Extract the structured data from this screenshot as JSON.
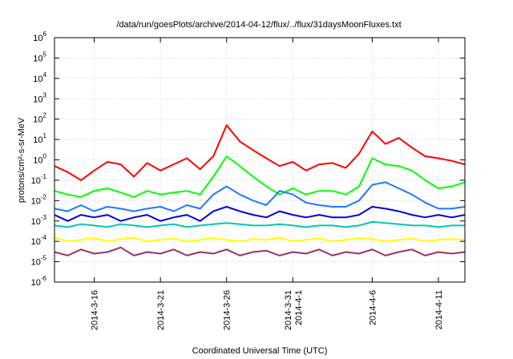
{
  "chart_data": {
    "type": "line",
    "title": "/data/run/goesPlots/archive/2014-04-12/flux/../flux/31daysMoonFluxes.txt",
    "xlabel": "Coordinated Universal Time (UTC)",
    "ylabel": "protons/cm²-s-sr-MeV",
    "y_scale": "log",
    "ylim_exponents": [
      -6,
      6
    ],
    "y_ticks": [
      {
        "base": "10",
        "exp": "-6"
      },
      {
        "base": "10",
        "exp": "-5"
      },
      {
        "base": "10",
        "exp": "-4"
      },
      {
        "base": "10",
        "exp": "-3"
      },
      {
        "base": "10",
        "exp": "-2"
      },
      {
        "base": "10",
        "exp": "-1"
      },
      {
        "base": "10",
        "exp": "0"
      },
      {
        "base": "10",
        "exp": "1"
      },
      {
        "base": "10",
        "exp": "2"
      },
      {
        "base": "10",
        "exp": "3"
      },
      {
        "base": "10",
        "exp": "4"
      },
      {
        "base": "10",
        "exp": "5"
      },
      {
        "base": "10",
        "exp": "6"
      }
    ],
    "x_range": [
      "2014-03-13",
      "2014-04-13"
    ],
    "x_ticks": [
      {
        "date": "2014-03-16",
        "labels": [
          "2014-3-16"
        ]
      },
      {
        "date": "2014-03-21",
        "labels": [
          "2014-3-21"
        ]
      },
      {
        "date": "2014-03-26",
        "labels": [
          "2014-3-26"
        ]
      },
      {
        "date": "2014-03-31",
        "labels": [
          "2014-3-31",
          "2014-4-1"
        ]
      },
      {
        "date": "2014-04-06",
        "labels": [
          "2014-4-6"
        ]
      },
      {
        "date": "2014-04-11",
        "labels": [
          "2014-4-11"
        ]
      }
    ],
    "grid": true,
    "series": [
      {
        "color": "#ff0000",
        "points": [
          [
            "2014-03-13",
            0.5
          ],
          [
            "2014-03-14",
            0.25
          ],
          [
            "2014-03-15",
            0.1
          ],
          [
            "2014-03-16",
            0.3
          ],
          [
            "2014-03-17",
            0.8
          ],
          [
            "2014-03-18",
            0.6
          ],
          [
            "2014-03-19",
            0.15
          ],
          [
            "2014-03-20",
            0.7
          ],
          [
            "2014-03-21",
            0.3
          ],
          [
            "2014-03-22",
            0.6
          ],
          [
            "2014-03-23",
            1.2
          ],
          [
            "2014-03-24",
            0.35
          ],
          [
            "2014-03-25",
            1.5
          ],
          [
            "2014-03-26",
            50
          ],
          [
            "2014-03-27",
            8
          ],
          [
            "2014-03-28",
            3
          ],
          [
            "2014-03-29",
            1.2
          ],
          [
            "2014-03-30",
            0.5
          ],
          [
            "2014-03-31",
            0.8
          ],
          [
            "2014-04-01",
            0.3
          ],
          [
            "2014-04-02",
            0.6
          ],
          [
            "2014-04-03",
            0.7
          ],
          [
            "2014-04-04",
            0.4
          ],
          [
            "2014-04-05",
            2
          ],
          [
            "2014-04-06",
            25
          ],
          [
            "2014-04-07",
            6
          ],
          [
            "2014-04-08",
            12
          ],
          [
            "2014-04-09",
            4
          ],
          [
            "2014-04-10",
            1.5
          ],
          [
            "2014-04-11",
            1.2
          ],
          [
            "2014-04-12",
            0.9
          ],
          [
            "2014-04-13",
            0.6
          ]
        ]
      },
      {
        "color": "#00ff00",
        "points": [
          [
            "2014-03-13",
            0.03
          ],
          [
            "2014-03-14",
            0.02
          ],
          [
            "2014-03-15",
            0.015
          ],
          [
            "2014-03-16",
            0.03
          ],
          [
            "2014-03-17",
            0.04
          ],
          [
            "2014-03-18",
            0.025
          ],
          [
            "2014-03-19",
            0.015
          ],
          [
            "2014-03-20",
            0.03
          ],
          [
            "2014-03-21",
            0.02
          ],
          [
            "2014-03-22",
            0.025
          ],
          [
            "2014-03-23",
            0.03
          ],
          [
            "2014-03-24",
            0.02
          ],
          [
            "2014-03-25",
            0.15
          ],
          [
            "2014-03-26",
            1.5
          ],
          [
            "2014-03-27",
            0.5
          ],
          [
            "2014-03-28",
            0.15
          ],
          [
            "2014-03-29",
            0.05
          ],
          [
            "2014-03-30",
            0.02
          ],
          [
            "2014-03-31",
            0.04
          ],
          [
            "2014-04-01",
            0.02
          ],
          [
            "2014-04-02",
            0.03
          ],
          [
            "2014-04-03",
            0.03
          ],
          [
            "2014-04-04",
            0.02
          ],
          [
            "2014-04-05",
            0.05
          ],
          [
            "2014-04-06",
            1.2
          ],
          [
            "2014-04-07",
            0.6
          ],
          [
            "2014-04-08",
            0.5
          ],
          [
            "2014-04-09",
            0.3
          ],
          [
            "2014-04-10",
            0.1
          ],
          [
            "2014-04-11",
            0.04
          ],
          [
            "2014-04-12",
            0.05
          ],
          [
            "2014-04-13",
            0.08
          ]
        ]
      },
      {
        "color": "#1e78ff",
        "points": [
          [
            "2014-03-13",
            0.004
          ],
          [
            "2014-03-14",
            0.003
          ],
          [
            "2014-03-15",
            0.006
          ],
          [
            "2014-03-16",
            0.003
          ],
          [
            "2014-03-17",
            0.005
          ],
          [
            "2014-03-18",
            0.004
          ],
          [
            "2014-03-19",
            0.003
          ],
          [
            "2014-03-20",
            0.004
          ],
          [
            "2014-03-21",
            0.005
          ],
          [
            "2014-03-22",
            0.003
          ],
          [
            "2014-03-23",
            0.006
          ],
          [
            "2014-03-24",
            0.004
          ],
          [
            "2014-03-25",
            0.02
          ],
          [
            "2014-03-26",
            0.05
          ],
          [
            "2014-03-27",
            0.02
          ],
          [
            "2014-03-28",
            0.01
          ],
          [
            "2014-03-29",
            0.006
          ],
          [
            "2014-03-30",
            0.03
          ],
          [
            "2014-03-31",
            0.02
          ],
          [
            "2014-04-01",
            0.008
          ],
          [
            "2014-04-02",
            0.006
          ],
          [
            "2014-04-03",
            0.005
          ],
          [
            "2014-04-04",
            0.005
          ],
          [
            "2014-04-05",
            0.01
          ],
          [
            "2014-04-06",
            0.06
          ],
          [
            "2014-04-07",
            0.08
          ],
          [
            "2014-04-08",
            0.04
          ],
          [
            "2014-04-09",
            0.02
          ],
          [
            "2014-04-10",
            0.008
          ],
          [
            "2014-04-11",
            0.004
          ],
          [
            "2014-04-12",
            0.004
          ],
          [
            "2014-04-13",
            0.005
          ]
        ]
      },
      {
        "color": "#0000e0",
        "points": [
          [
            "2014-03-13",
            0.002
          ],
          [
            "2014-03-14",
            0.001
          ],
          [
            "2014-03-15",
            0.002
          ],
          [
            "2014-03-16",
            0.0015
          ],
          [
            "2014-03-17",
            0.002
          ],
          [
            "2014-03-18",
            0.001
          ],
          [
            "2014-03-19",
            0.0015
          ],
          [
            "2014-03-20",
            0.002
          ],
          [
            "2014-03-21",
            0.001
          ],
          [
            "2014-03-22",
            0.0015
          ],
          [
            "2014-03-23",
            0.002
          ],
          [
            "2014-03-24",
            0.001
          ],
          [
            "2014-03-25",
            0.003
          ],
          [
            "2014-03-26",
            0.005
          ],
          [
            "2014-03-27",
            0.003
          ],
          [
            "2014-03-28",
            0.002
          ],
          [
            "2014-03-29",
            0.0015
          ],
          [
            "2014-03-30",
            0.003
          ],
          [
            "2014-03-31",
            0.002
          ],
          [
            "2014-04-01",
            0.0015
          ],
          [
            "2014-04-02",
            0.002
          ],
          [
            "2014-04-03",
            0.0015
          ],
          [
            "2014-04-04",
            0.0015
          ],
          [
            "2014-04-05",
            0.002
          ],
          [
            "2014-04-06",
            0.005
          ],
          [
            "2014-04-07",
            0.004
          ],
          [
            "2014-04-08",
            0.003
          ],
          [
            "2014-04-09",
            0.002
          ],
          [
            "2014-04-10",
            0.0015
          ],
          [
            "2014-04-11",
            0.002
          ],
          [
            "2014-04-12",
            0.0015
          ],
          [
            "2014-04-13",
            0.002
          ]
        ]
      },
      {
        "color": "#00c8b4",
        "points": [
          [
            "2014-03-13",
            0.0006
          ],
          [
            "2014-03-14",
            0.0005
          ],
          [
            "2014-03-15",
            0.0007
          ],
          [
            "2014-03-16",
            0.0006
          ],
          [
            "2014-03-17",
            0.0005
          ],
          [
            "2014-03-18",
            0.0007
          ],
          [
            "2014-03-19",
            0.0006
          ],
          [
            "2014-03-20",
            0.0005
          ],
          [
            "2014-03-21",
            0.0006
          ],
          [
            "2014-03-22",
            0.0007
          ],
          [
            "2014-03-23",
            0.0005
          ],
          [
            "2014-03-24",
            0.0006
          ],
          [
            "2014-03-25",
            0.0007
          ],
          [
            "2014-03-26",
            0.0008
          ],
          [
            "2014-03-27",
            0.0007
          ],
          [
            "2014-03-28",
            0.0006
          ],
          [
            "2014-03-29",
            0.0006
          ],
          [
            "2014-03-30",
            0.0007
          ],
          [
            "2014-03-31",
            0.0006
          ],
          [
            "2014-04-01",
            0.0005
          ],
          [
            "2014-04-02",
            0.0006
          ],
          [
            "2014-04-03",
            0.0006
          ],
          [
            "2014-04-04",
            0.0005
          ],
          [
            "2014-04-05",
            0.0006
          ],
          [
            "2014-04-06",
            0.0009
          ],
          [
            "2014-04-07",
            0.0008
          ],
          [
            "2014-04-08",
            0.0007
          ],
          [
            "2014-04-09",
            0.0006
          ],
          [
            "2014-04-10",
            0.0006
          ],
          [
            "2014-04-11",
            0.0005
          ],
          [
            "2014-04-12",
            0.0006
          ],
          [
            "2014-04-13",
            0.0006
          ]
        ]
      },
      {
        "color": "#ffff00",
        "points": [
          [
            "2014-03-13",
            0.00015
          ],
          [
            "2014-03-14",
            0.0001
          ],
          [
            "2014-03-15",
            0.00012
          ],
          [
            "2014-03-16",
            0.00015
          ],
          [
            "2014-03-17",
            0.0001
          ],
          [
            "2014-03-18",
            0.00013
          ],
          [
            "2014-03-19",
            0.00015
          ],
          [
            "2014-03-20",
            0.0001
          ],
          [
            "2014-03-21",
            0.00012
          ],
          [
            "2014-03-22",
            0.00014
          ],
          [
            "2014-03-23",
            0.0001
          ],
          [
            "2014-03-24",
            0.00012
          ],
          [
            "2014-03-25",
            0.00015
          ],
          [
            "2014-03-26",
            0.00012
          ],
          [
            "2014-03-27",
            0.0001
          ],
          [
            "2014-03-28",
            0.00013
          ],
          [
            "2014-03-29",
            0.00012
          ],
          [
            "2014-03-30",
            0.00015
          ],
          [
            "2014-03-31",
            0.0001
          ],
          [
            "2014-04-01",
            0.00012
          ],
          [
            "2014-04-02",
            0.00014
          ],
          [
            "2014-04-03",
            0.0001
          ],
          [
            "2014-04-04",
            0.00012
          ],
          [
            "2014-04-05",
            0.00015
          ],
          [
            "2014-04-06",
            0.00013
          ],
          [
            "2014-04-07",
            0.0001
          ],
          [
            "2014-04-08",
            0.00012
          ],
          [
            "2014-04-09",
            0.00014
          ],
          [
            "2014-04-10",
            0.0001
          ],
          [
            "2014-04-11",
            0.00012
          ],
          [
            "2014-04-12",
            0.00013
          ],
          [
            "2014-04-13",
            0.00012
          ]
        ]
      },
      {
        "color": "#993366",
        "points": [
          [
            "2014-03-13",
            3e-05
          ],
          [
            "2014-03-14",
            2e-05
          ],
          [
            "2014-03-15",
            4e-05
          ],
          [
            "2014-03-16",
            2.5e-05
          ],
          [
            "2014-03-17",
            3e-05
          ],
          [
            "2014-03-18",
            5e-05
          ],
          [
            "2014-03-19",
            2e-05
          ],
          [
            "2014-03-20",
            3e-05
          ],
          [
            "2014-03-21",
            2.5e-05
          ],
          [
            "2014-03-22",
            4e-05
          ],
          [
            "2014-03-23",
            2e-05
          ],
          [
            "2014-03-24",
            3e-05
          ],
          [
            "2014-03-25",
            2.5e-05
          ],
          [
            "2014-03-26",
            4e-05
          ],
          [
            "2014-03-27",
            2e-05
          ],
          [
            "2014-03-28",
            3e-05
          ],
          [
            "2014-03-29",
            3.5e-05
          ],
          [
            "2014-03-30",
            2e-05
          ],
          [
            "2014-03-31",
            3e-05
          ],
          [
            "2014-04-01",
            2.5e-05
          ],
          [
            "2014-04-02",
            4e-05
          ],
          [
            "2014-04-03",
            2e-05
          ],
          [
            "2014-04-04",
            3e-05
          ],
          [
            "2014-04-05",
            2.5e-05
          ],
          [
            "2014-04-06",
            4e-05
          ],
          [
            "2014-04-07",
            2e-05
          ],
          [
            "2014-04-08",
            3e-05
          ],
          [
            "2014-04-09",
            4e-05
          ],
          [
            "2014-04-10",
            2e-05
          ],
          [
            "2014-04-11",
            3e-05
          ],
          [
            "2014-04-12",
            2.5e-05
          ],
          [
            "2014-04-13",
            3e-05
          ]
        ]
      }
    ]
  }
}
